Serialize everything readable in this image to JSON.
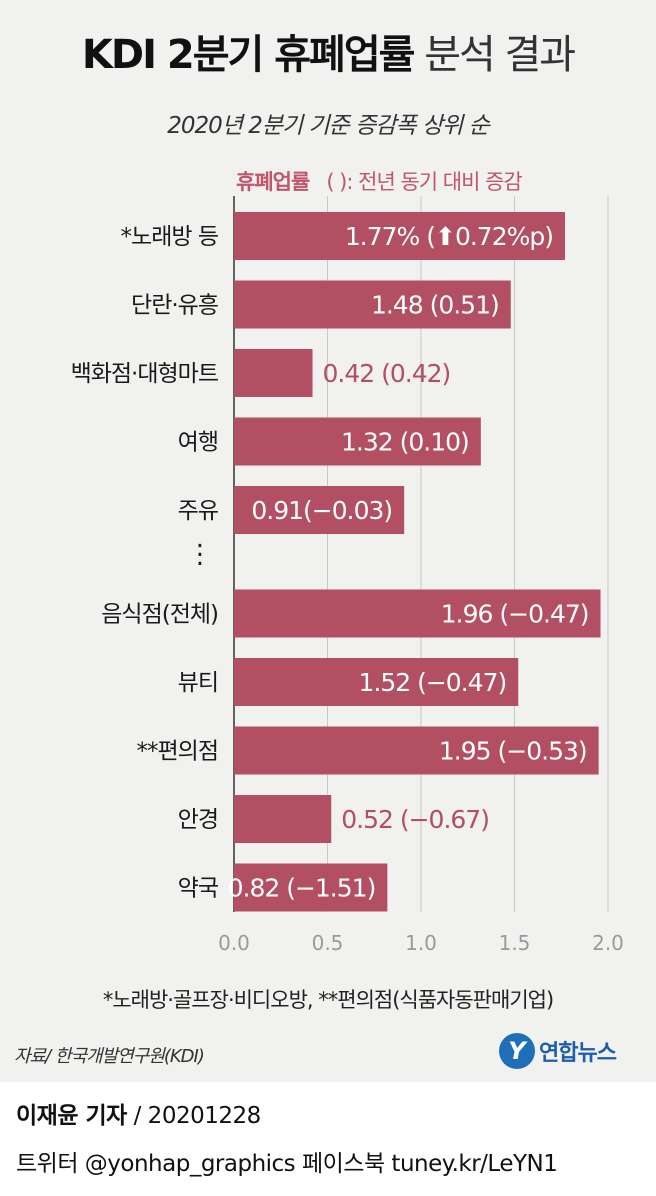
{
  "header": {
    "title_bold": "KDI 2분기 휴폐업률",
    "title_light": "분석 결과",
    "subtitle": "2020년 2분기 기준 증감폭 상위 순"
  },
  "legend": {
    "label": "휴폐업률",
    "note": "( ): 전년 동기 대비 증감"
  },
  "chart_data": {
    "type": "bar",
    "orientation": "horizontal",
    "categories": [
      "*노래방 등",
      "단란·유흥",
      "백화점·대형마트",
      "여행",
      "주유",
      "음식점(전체)",
      "뷰티",
      "**편의점",
      "안경",
      "약국"
    ],
    "values": [
      1.77,
      1.48,
      0.42,
      1.32,
      0.91,
      1.96,
      1.52,
      1.95,
      0.52,
      0.82
    ],
    "labels": [
      "1.77% (⬆0.72%p)",
      "1.48 (0.51)",
      "0.42 (0.42)",
      "1.32 (0.10)",
      "0.91(−0.03)",
      "1.96 (−0.47)",
      "1.52 (−0.47)",
      "1.95 (−0.53)",
      "0.52 (−0.67)",
      "0.82 (−1.51)"
    ],
    "gap_after_index": 4,
    "gap_marker": "⋮",
    "xlim": [
      0,
      2.0
    ],
    "xticks": [
      "0.0",
      "0.5",
      "1.0",
      "1.5",
      "2.0"
    ],
    "grid": true,
    "colors": {
      "bar": "#b24f63",
      "label_outside": "#b24f63",
      "label_inside": "#ffffff",
      "grid": "#c8c8c8"
    }
  },
  "footnote": "*노래방·골프장·비디오방, **편의점(식품자동판매기업)",
  "source": "자료/ 한국개발연구원(KDI)",
  "logo": {
    "mark": "Y",
    "text": "연합뉴스"
  },
  "byline": {
    "reporter": "이재윤 기자",
    "date": " / 20201228"
  },
  "social": "트위터 @yonhap_graphics  페이스북 tuney.kr/LeYN1"
}
